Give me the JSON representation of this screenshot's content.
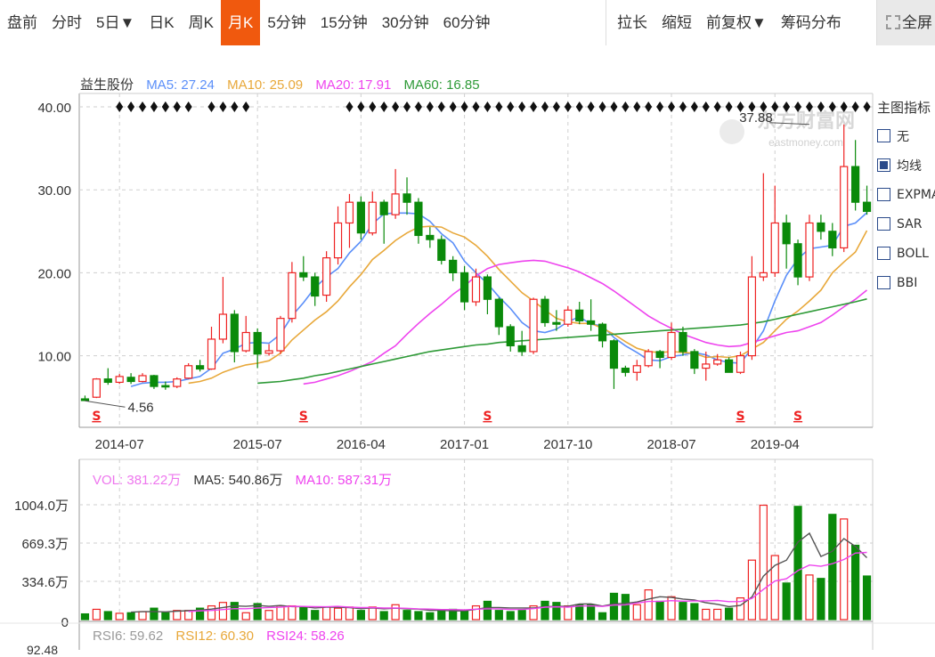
{
  "toolbar": {
    "left": [
      {
        "label": "盘前",
        "active": false
      },
      {
        "label": "分时",
        "active": false
      },
      {
        "label": "5日▼",
        "active": false
      },
      {
        "label": "日K",
        "active": false
      },
      {
        "label": "周K",
        "active": false
      },
      {
        "label": "月K",
        "active": true
      },
      {
        "label": "5分钟",
        "active": false
      },
      {
        "label": "15分钟",
        "active": false
      },
      {
        "label": "30分钟",
        "active": false
      },
      {
        "label": "60分钟",
        "active": false
      }
    ],
    "right": [
      "拉长",
      "缩短",
      "前复权▼",
      "筹码分布"
    ],
    "fullscreen": "全屏"
  },
  "price_legend": {
    "name": "益生股份",
    "ma5": {
      "label": "MA5: 27.24",
      "color": "#5b8ff9"
    },
    "ma10": {
      "label": "MA10: 25.09",
      "color": "#e8a83a"
    },
    "ma20": {
      "label": "MA20: 17.91",
      "color": "#ee44ee"
    },
    "ma60": {
      "label": "MA60: 16.85",
      "color": "#2e9a37"
    }
  },
  "volume_legend": {
    "vol": {
      "label": "VOL: 381.22万",
      "color": "#ee77ee"
    },
    "ma5": {
      "label": "MA5: 540.86万",
      "color": "#333333"
    },
    "ma10": {
      "label": "MA10: 587.31万",
      "color": "#ee44ee"
    }
  },
  "rsi_legend": {
    "rsi6": {
      "label": "RSI6: 59.62",
      "color": "#999999"
    },
    "rsi12": {
      "label": "RSI12: 60.30",
      "color": "#e8a83a"
    },
    "rsi24": {
      "label": "RSI24: 58.26",
      "color": "#ee44ee"
    },
    "axis_top": "92.48"
  },
  "indicator_panel": {
    "title": "主图指标",
    "options": [
      {
        "label": "无",
        "checked": false
      },
      {
        "label": "均线",
        "checked": true
      },
      {
        "label": "EXPMA",
        "checked": false
      },
      {
        "label": "SAR",
        "checked": false
      },
      {
        "label": "BOLL",
        "checked": false
      },
      {
        "label": "BBI",
        "checked": false
      }
    ]
  },
  "watermark": {
    "brand": "东方财富网",
    "site": "eastmoney.com"
  },
  "colors": {
    "up": "#ee2222",
    "down": "#0a8a0a",
    "grid": "#cfcfcf"
  },
  "chart_data": [
    {
      "type": "candlestick",
      "title": "益生股份",
      "period": "monthly",
      "ylim": [
        4,
        40
      ],
      "yticks": [
        10,
        20,
        30,
        40
      ],
      "ytick_labels": [
        "10.00",
        "20.00",
        "30.00",
        "40.00"
      ],
      "xtick_labels": [
        "2014-07",
        "2015-07",
        "2016-04",
        "2017-01",
        "2017-10",
        "2018-07",
        "2019-04"
      ],
      "xtick_index": [
        3,
        15,
        24,
        33,
        42,
        51,
        60
      ],
      "annotations": [
        {
          "label": "37.88",
          "index": 63,
          "value": 37.88
        },
        {
          "label": "4.56",
          "index": 0,
          "value": 4.56
        }
      ],
      "dividend_markers_index": [
        1,
        19,
        35,
        57,
        62
      ],
      "candles": [
        [
          4.8,
          4.6,
          5.2,
          4.56
        ],
        [
          5.0,
          7.2,
          7.3,
          4.9
        ],
        [
          7.2,
          6.8,
          8.5,
          6.5
        ],
        [
          6.8,
          7.5,
          7.8,
          6.6
        ],
        [
          7.4,
          6.9,
          7.9,
          6.6
        ],
        [
          6.9,
          7.6,
          7.9,
          6.8
        ],
        [
          7.6,
          6.3,
          7.7,
          6.0
        ],
        [
          6.4,
          6.3,
          6.9,
          5.9
        ],
        [
          6.3,
          7.2,
          7.4,
          6.1
        ],
        [
          7.3,
          8.8,
          9.1,
          7.2
        ],
        [
          8.8,
          8.4,
          9.5,
          8.1
        ],
        [
          8.4,
          12.0,
          13.5,
          8.3
        ],
        [
          12.0,
          15.0,
          19.5,
          11.5
        ],
        [
          15.0,
          10.5,
          15.5,
          9.2
        ],
        [
          10.6,
          12.8,
          14.8,
          10.4
        ],
        [
          12.8,
          10.2,
          13.3,
          8.5
        ],
        [
          10.3,
          10.6,
          11.4,
          10.0
        ],
        [
          10.6,
          14.5,
          14.8,
          10.2
        ],
        [
          14.5,
          20.0,
          21.3,
          14.0
        ],
        [
          20.0,
          19.5,
          22.0,
          19.0
        ],
        [
          19.5,
          17.2,
          20.0,
          16.0
        ],
        [
          17.3,
          21.8,
          22.6,
          16.5
        ],
        [
          21.8,
          26.0,
          28.0,
          21.0
        ],
        [
          26.0,
          28.5,
          29.5,
          23.0
        ],
        [
          28.5,
          24.8,
          29.2,
          24.0
        ],
        [
          24.8,
          28.5,
          29.8,
          24.5
        ],
        [
          28.5,
          27.0,
          28.8,
          23.5
        ],
        [
          27.0,
          29.5,
          32.5,
          26.5
        ],
        [
          29.5,
          28.5,
          31.5,
          27.0
        ],
        [
          28.5,
          24.5,
          29.0,
          23.5
        ],
        [
          24.5,
          24.0,
          25.5,
          23.0
        ],
        [
          24.0,
          21.5,
          24.5,
          21.0
        ],
        [
          21.5,
          20.0,
          22.0,
          19.0
        ],
        [
          20.0,
          16.5,
          20.8,
          15.5
        ],
        [
          16.5,
          19.5,
          20.5,
          16.0
        ],
        [
          19.5,
          16.8,
          19.8,
          15.0
        ],
        [
          16.8,
          13.5,
          17.0,
          12.5
        ],
        [
          13.5,
          11.2,
          13.8,
          10.5
        ],
        [
          11.2,
          10.5,
          13.0,
          10.0
        ],
        [
          10.5,
          16.8,
          17.0,
          10.2
        ],
        [
          16.8,
          14.0,
          17.2,
          13.5
        ],
        [
          14.0,
          13.8,
          15.5,
          13.0
        ],
        [
          13.8,
          15.5,
          16.0,
          13.5
        ],
        [
          15.5,
          14.2,
          16.5,
          13.8
        ],
        [
          14.2,
          13.8,
          16.8,
          13.0
        ],
        [
          13.8,
          11.8,
          14.0,
          11.0
        ],
        [
          11.8,
          8.5,
          12.0,
          6.0
        ],
        [
          8.5,
          8.0,
          8.8,
          7.5
        ],
        [
          8.0,
          8.8,
          9.5,
          7.0
        ],
        [
          8.8,
          10.5,
          10.8,
          8.6
        ],
        [
          10.5,
          9.8,
          10.7,
          8.5
        ],
        [
          9.8,
          12.8,
          14.0,
          9.5
        ],
        [
          12.8,
          10.5,
          13.5,
          10.0
        ],
        [
          10.5,
          8.5,
          10.8,
          7.8
        ],
        [
          8.5,
          9.0,
          10.5,
          7.0
        ],
        [
          9.0,
          9.5,
          10.2,
          8.8
        ],
        [
          9.5,
          8.0,
          9.8,
          8.0
        ],
        [
          8.0,
          10.0,
          10.5,
          7.8
        ],
        [
          10.0,
          19.5,
          22.0,
          9.5
        ],
        [
          19.5,
          20.0,
          32.0,
          19.0
        ],
        [
          20.0,
          26.0,
          30.5,
          19.5
        ],
        [
          26.0,
          23.5,
          27.0,
          20.5
        ],
        [
          23.5,
          19.5,
          24.0,
          18.5
        ],
        [
          19.5,
          26.0,
          27.0,
          19.0
        ],
        [
          26.0,
          25.0,
          27.0,
          24.0
        ],
        [
          25.0,
          23.0,
          26.0,
          22.0
        ],
        [
          23.0,
          32.8,
          37.88,
          22.5
        ],
        [
          32.8,
          28.5,
          36.0,
          27.5
        ],
        [
          28.5,
          27.4,
          30.5,
          27.0
        ]
      ],
      "series": [
        {
          "name": "MA5",
          "color": "#5b8ff9",
          "values": [
            null,
            null,
            null,
            null,
            6.3,
            6.7,
            6.8,
            6.8,
            6.9,
            7.2,
            7.5,
            8.5,
            10.3,
            10.8,
            11.5,
            11.6,
            11.5,
            12.6,
            14.8,
            16.4,
            18.2,
            19.5,
            20.5,
            22.4,
            23.8,
            25.9,
            27.1,
            27.2,
            27.2,
            27.1,
            26.2,
            24.7,
            23.6,
            21.4,
            20.0,
            18.7,
            17.1,
            15.7,
            14.0,
            13.0,
            12.8,
            13.2,
            14.1,
            14.7,
            13.8,
            13.6,
            12.2,
            11.2,
            10.4,
            9.5,
            9.4,
            9.9,
            10.1,
            10.4,
            10.1,
            9.5,
            9.2,
            9.1,
            10.9,
            13.0,
            16.6,
            19.7,
            21.7,
            22.9,
            23.1,
            23.3,
            25.6,
            26.0,
            27.24
          ]
        },
        {
          "name": "MA10",
          "color": "#e8a83a",
          "values": [
            null,
            null,
            null,
            null,
            null,
            null,
            null,
            null,
            null,
            6.7,
            6.9,
            7.3,
            8.0,
            8.5,
            8.9,
            9.1,
            9.4,
            10.3,
            11.9,
            13.1,
            14.3,
            15.3,
            16.6,
            18.3,
            19.8,
            21.6,
            22.7,
            23.9,
            24.8,
            25.5,
            25.6,
            25.5,
            24.8,
            24.3,
            23.3,
            22.0,
            20.4,
            19.0,
            17.6,
            16.6,
            15.5,
            14.5,
            14.1,
            13.9,
            13.9,
            13.3,
            12.6,
            11.7,
            10.9,
            10.5,
            10.4,
            10.5,
            10.4,
            10.3,
            9.8,
            9.9,
            9.8,
            10.0,
            10.8,
            11.6,
            13.0,
            14.4,
            15.4,
            16.6,
            17.9,
            20.0,
            21.3,
            22.5,
            25.09
          ]
        },
        {
          "name": "MA20",
          "color": "#ee44ee",
          "values": [
            null,
            null,
            null,
            null,
            null,
            null,
            null,
            null,
            null,
            null,
            null,
            null,
            null,
            null,
            null,
            null,
            null,
            null,
            null,
            6.6,
            6.8,
            7.2,
            7.6,
            8.1,
            8.7,
            9.3,
            10.3,
            11.2,
            12.6,
            13.9,
            15.1,
            16.2,
            17.4,
            18.4,
            19.6,
            20.5,
            21.0,
            21.2,
            21.4,
            21.5,
            21.4,
            21.0,
            20.6,
            20.1,
            19.4,
            18.7,
            17.8,
            16.8,
            15.8,
            14.8,
            14.0,
            13.3,
            12.6,
            12.1,
            11.6,
            11.3,
            11.1,
            11.2,
            11.6,
            12.0,
            12.4,
            12.8,
            13.0,
            13.5,
            14.0,
            14.9,
            15.9,
            16.8,
            17.91
          ]
        },
        {
          "name": "MA60",
          "color": "#2e9a37",
          "values": [
            null,
            null,
            null,
            null,
            null,
            null,
            null,
            null,
            null,
            null,
            null,
            null,
            null,
            null,
            null,
            6.7,
            6.8,
            6.9,
            7.1,
            7.3,
            7.6,
            7.8,
            8.1,
            8.4,
            8.7,
            9.0,
            9.3,
            9.6,
            9.9,
            10.2,
            10.5,
            10.7,
            10.9,
            11.1,
            11.3,
            11.4,
            11.6,
            11.7,
            11.8,
            11.9,
            12.0,
            12.1,
            12.2,
            12.3,
            12.4,
            12.5,
            12.6,
            12.7,
            12.8,
            12.9,
            13.0,
            13.1,
            13.2,
            13.3,
            13.4,
            13.5,
            13.6,
            13.7,
            13.9,
            14.1,
            14.4,
            14.7,
            15.0,
            15.3,
            15.6,
            15.9,
            16.2,
            16.5,
            16.85
          ]
        }
      ]
    },
    {
      "type": "bar",
      "title": "VOL",
      "unit": "万",
      "ylim": [
        0,
        1004
      ],
      "yticks": [
        0,
        334.6,
        669.3,
        1004.0
      ],
      "ytick_labels": [
        "0",
        "334.6万",
        "669.3万",
        "1004.0万"
      ],
      "volumes": [
        50,
        90,
        70,
        55,
        60,
        70,
        100,
        60,
        80,
        80,
        100,
        120,
        150,
        150,
        60,
        140,
        80,
        120,
        120,
        110,
        80,
        110,
        100,
        110,
        80,
        110,
        70,
        130,
        80,
        70,
        60,
        80,
        90,
        80,
        120,
        160,
        80,
        70,
        80,
        120,
        160,
        150,
        120,
        130,
        130,
        60,
        230,
        220,
        130,
        260,
        160,
        200,
        150,
        140,
        90,
        90,
        100,
        190,
        520,
        1000,
        560,
        320,
        990,
        390,
        360,
        920,
        880,
        650,
        381.22
      ],
      "series": [
        {
          "name": "MA5",
          "color": "#555555",
          "values": [
            null,
            null,
            null,
            null,
            65,
            69,
            71,
            68,
            74,
            78,
            82,
            92,
            106,
            120,
            116,
            124,
            116,
            124,
            114,
            114,
            102,
            108,
            108,
            104,
            96,
            102,
            94,
            100,
            94,
            92,
            82,
            82,
            76,
            76,
            90,
            106,
            106,
            102,
            102,
            102,
            112,
            116,
            116,
            136,
            138,
            118,
            138,
            142,
            154,
            180,
            200,
            194,
            180,
            172,
            148,
            134,
            114,
            124,
            198,
            380,
            474,
            520,
            678,
            756,
            552,
            598,
            708,
            640,
            540.86
          ]
        },
        {
          "name": "MA10",
          "color": "#ee44ee",
          "values": [
            null,
            null,
            null,
            null,
            null,
            null,
            null,
            null,
            null,
            71,
            76,
            80,
            88,
            96,
            95,
            101,
            106,
            108,
            117,
            115,
            113,
            112,
            116,
            109,
            105,
            105,
            101,
            102,
            99,
            94,
            92,
            88,
            88,
            85,
            91,
            94,
            94,
            89,
            89,
            96,
            109,
            111,
            109,
            119,
            120,
            115,
            127,
            129,
            145,
            159,
            159,
            166,
            161,
            163,
            164,
            167,
            157,
            158,
            185,
            264,
            337,
            357,
            429,
            477,
            466,
            489,
            525,
            581,
            587.31
          ]
        }
      ]
    }
  ]
}
